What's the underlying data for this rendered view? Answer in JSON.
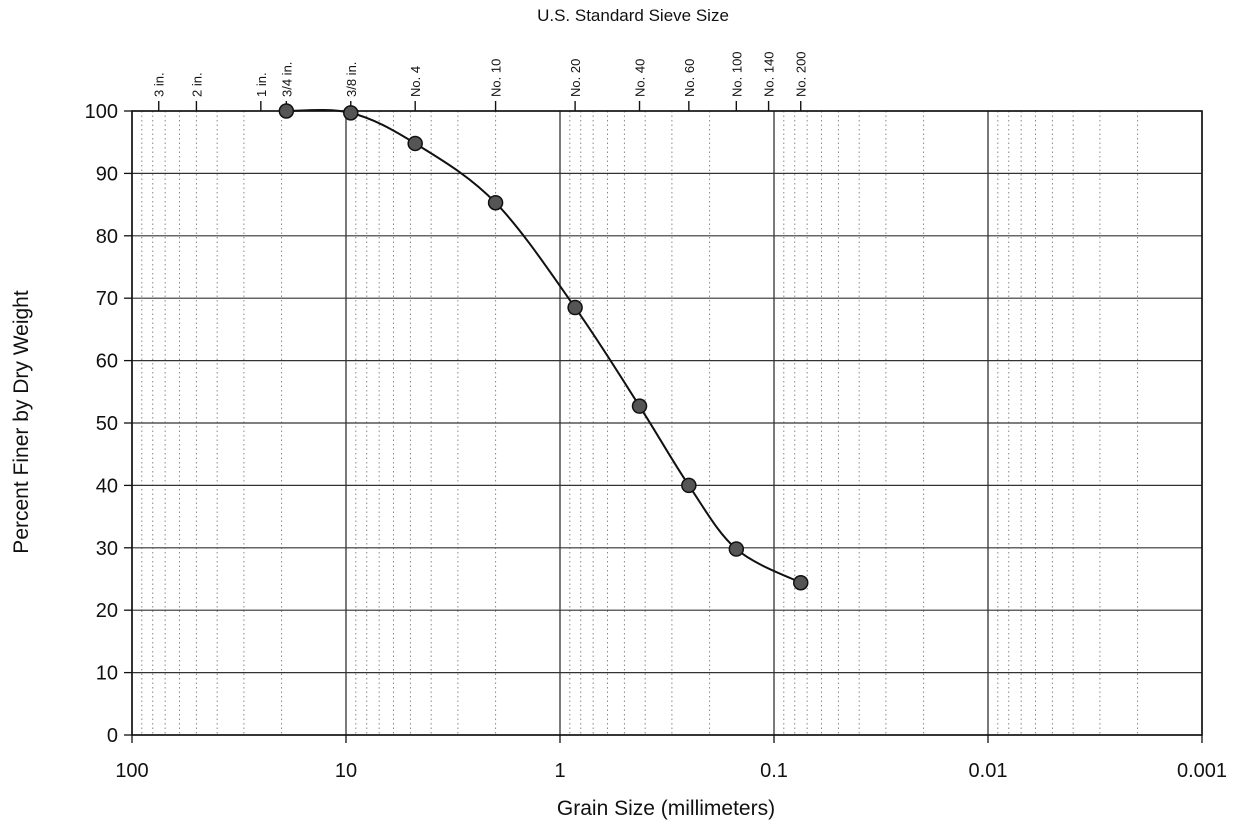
{
  "chart_data": {
    "type": "line",
    "title": "U.S. Standard Sieve Size",
    "xlabel": "Grain Size (millimeters)",
    "ylabel": "Percent Finer by Dry Weight",
    "x_scale": "log",
    "x_reversed": true,
    "xlim": [
      100,
      0.001
    ],
    "ylim": [
      0,
      100
    ],
    "x_ticks": [
      100,
      10,
      1,
      0.1,
      0.01,
      0.001
    ],
    "x_tick_labels": [
      "100",
      "10",
      "1",
      "0.1",
      "0.01",
      "0.001"
    ],
    "y_ticks": [
      0,
      10,
      20,
      30,
      40,
      50,
      60,
      70,
      80,
      90,
      100
    ],
    "y_tick_labels": [
      "0",
      "10",
      "20",
      "30",
      "40",
      "50",
      "60",
      "70",
      "80",
      "90",
      "100"
    ],
    "grid": true,
    "sieves": [
      {
        "label": "3 in.",
        "size_mm": 75
      },
      {
        "label": "2 in.",
        "size_mm": 50
      },
      {
        "label": "1 in.",
        "size_mm": 25
      },
      {
        "label": "3/4 in.",
        "size_mm": 19
      },
      {
        "label": "3/8 in.",
        "size_mm": 9.5
      },
      {
        "label": "No. 4",
        "size_mm": 4.75
      },
      {
        "label": "No. 10",
        "size_mm": 2.0
      },
      {
        "label": "No. 20",
        "size_mm": 0.85
      },
      {
        "label": "No. 40",
        "size_mm": 0.425
      },
      {
        "label": "No. 60",
        "size_mm": 0.25
      },
      {
        "label": "No. 100",
        "size_mm": 0.15
      },
      {
        "label": "No. 140",
        "size_mm": 0.106
      },
      {
        "label": "No. 200",
        "size_mm": 0.075
      }
    ],
    "series": [
      {
        "x": [
          19,
          9.5,
          4.75,
          2.0,
          0.85,
          0.425,
          0.25,
          0.15,
          0.075
        ],
        "y": [
          100,
          99.7,
          94.8,
          85.3,
          68.5,
          52.7,
          40,
          29.8,
          24.4
        ]
      }
    ]
  },
  "colors": {
    "line": "#111111",
    "marker": "#555555",
    "major_grid": "#333333",
    "minor_grid": "#888888"
  }
}
